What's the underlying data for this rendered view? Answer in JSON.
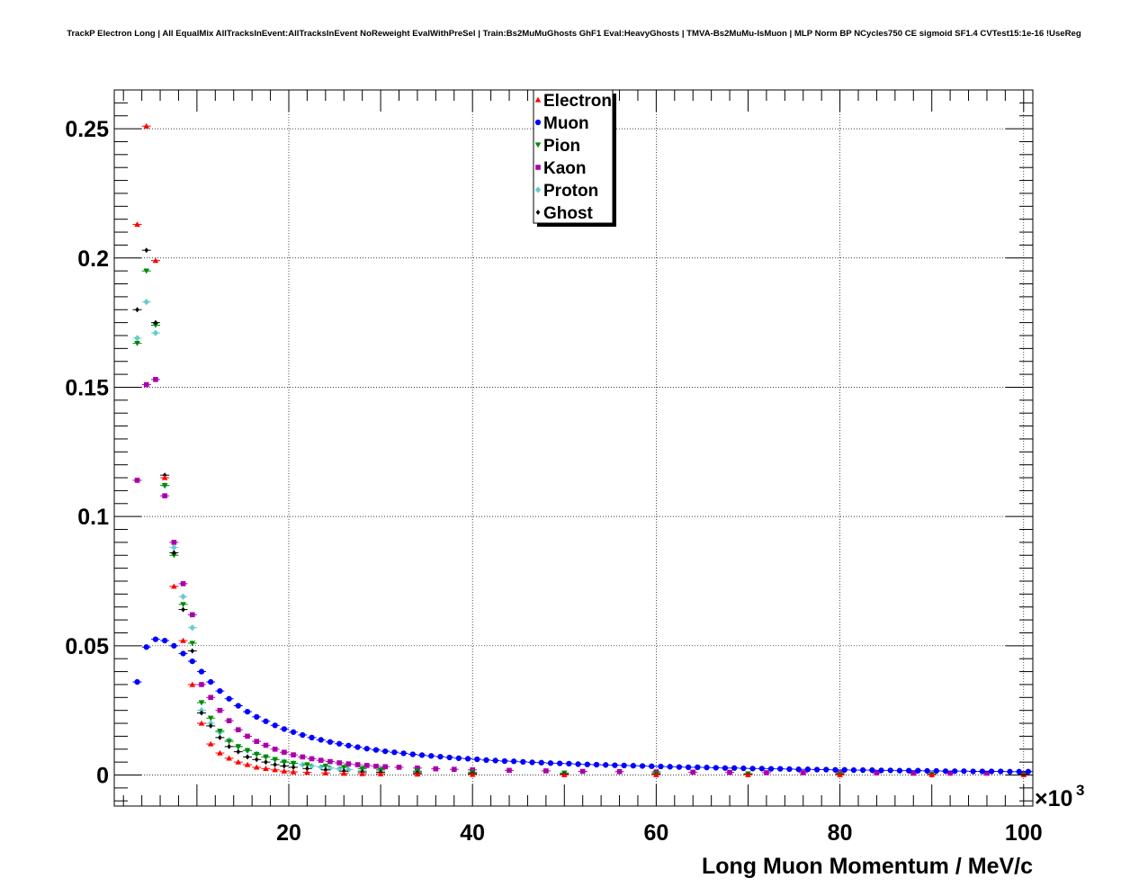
{
  "title": "TrackP Electron Long | All EqualMix AllTracksInEvent:AllTracksInEvent NoReweight EvalWithPreSel | Train:Bs2MuMuGhosts GhF1 Eval:HeavyGhosts | TMVA-Bs2MuMu-IsMuon | MLP Norm BP NCycles750 CE sigmoid SF1.4 CVTest15:1e-16 !UseReg",
  "chart_data": {
    "type": "scatter",
    "title": "TrackP Electron Long | All EqualMix AllTracksInEvent:AllTracksInEvent NoReweight EvalWithPreSel | Train:Bs2MuMuGhosts GhF1 Eval:HeavyGhosts | TMVA-Bs2MuMu-IsMuon | MLP Norm BP NCycles750 CE sigmoid SF1.4 CVTest15:1e-16 !UseReg",
    "xlabel": "Long Muon Momentum / MeV/c",
    "ylabel": "",
    "x_exponent_label": "×10",
    "x_exponent_power": "3",
    "xlim": [
      1,
      101
    ],
    "ylim": [
      -0.012,
      0.265
    ],
    "x_ticks": [
      20,
      40,
      60,
      80,
      100
    ],
    "x_tick_labels": [
      "20",
      "40",
      "60",
      "80",
      "100"
    ],
    "y_ticks": [
      0,
      0.05,
      0.1,
      0.15,
      0.2,
      0.25
    ],
    "y_tick_labels": [
      "0",
      "0.05",
      "0.1",
      "0.15",
      "0.2",
      "0.25"
    ],
    "grid": true,
    "legend_position": "top-center",
    "series": [
      {
        "name": "Electron",
        "marker": "triangle-up",
        "color": "#ff0000",
        "x": [
          3.5,
          4.5,
          5.5,
          6.5,
          7.5,
          8.5,
          9.5,
          10.5,
          11.5,
          12.5,
          13.5,
          14.5,
          15.5,
          16.5,
          17.5,
          18.5,
          19.5,
          20.5,
          22,
          24,
          26,
          28,
          30,
          34,
          40,
          50,
          60,
          70,
          80,
          90,
          100
        ],
        "y": [
          0.213,
          0.251,
          0.199,
          0.115,
          0.073,
          0.052,
          0.035,
          0.02,
          0.012,
          0.0085,
          0.0065,
          0.005,
          0.004,
          0.003,
          0.0025,
          0.002,
          0.0015,
          0.0012,
          0.001,
          0.0008,
          0.0006,
          0.0005,
          0.0004,
          0.0003,
          0.0002,
          0.0001,
          0.0001,
          0.0001,
          0.0001,
          0.0001,
          0.0001
        ]
      },
      {
        "name": "Muon",
        "marker": "circle",
        "color": "#0000ff",
        "x": [
          3.5,
          4.5,
          5.5,
          6.5,
          7.5,
          8.5,
          9.5,
          10.5,
          11.5,
          12.5,
          13.5,
          14.5,
          15.5,
          16.5,
          17.5,
          18.5,
          19.5,
          20.5,
          21.5,
          22.5,
          23.5,
          24.5,
          25.5,
          26.5,
          27.5,
          28.5,
          29.5,
          30.5,
          31.5,
          32.5,
          33.5,
          34.5,
          35.5,
          36.5,
          37.5,
          38.5,
          39.5,
          40.5,
          41.5,
          42.5,
          43.5,
          44.5,
          45.5,
          46.5,
          47.5,
          48.5,
          49.5,
          50.5,
          51.5,
          52.5,
          53.5,
          54.5,
          55.5,
          56.5,
          57.5,
          58.5,
          59.5,
          60.5,
          61.5,
          62.5,
          63.5,
          64.5,
          65.5,
          66.5,
          67.5,
          68.5,
          69.5,
          70.5,
          71.5,
          72.5,
          73.5,
          74.5,
          75.5,
          76.5,
          77.5,
          78.5,
          79.5,
          80.5,
          81.5,
          82.5,
          83.5,
          84.5,
          85.5,
          86.5,
          87.5,
          88.5,
          89.5,
          90.5,
          91.5,
          92.5,
          93.5,
          94.5,
          95.5,
          96.5,
          97.5,
          98.5,
          99.5,
          100.5
        ],
        "y": [
          0.036,
          0.0495,
          0.0525,
          0.052,
          0.05,
          0.047,
          0.044,
          0.04,
          0.036,
          0.0325,
          0.0295,
          0.0268,
          0.0245,
          0.0225,
          0.0208,
          0.0192,
          0.0178,
          0.0166,
          0.0155,
          0.0145,
          0.0136,
          0.0128,
          0.0121,
          0.0114,
          0.0108,
          0.0102,
          0.0097,
          0.0092,
          0.0088,
          0.0084,
          0.008,
          0.0077,
          0.0074,
          0.0071,
          0.0068,
          0.0065,
          0.0063,
          0.0061,
          0.0058,
          0.0056,
          0.0054,
          0.0053,
          0.0051,
          0.0049,
          0.0048,
          0.0046,
          0.0045,
          0.0044,
          0.0042,
          0.0041,
          0.004,
          0.0039,
          0.0038,
          0.0037,
          0.0036,
          0.0035,
          0.0034,
          0.0033,
          0.0032,
          0.0031,
          0.003,
          0.003,
          0.0029,
          0.0028,
          0.0027,
          0.0027,
          0.0026,
          0.0025,
          0.0025,
          0.0024,
          0.0024,
          0.0023,
          0.0022,
          0.0022,
          0.0021,
          0.0021,
          0.002,
          0.002,
          0.0019,
          0.0019,
          0.0019,
          0.0018,
          0.0018,
          0.0017,
          0.0017,
          0.0017,
          0.0016,
          0.0016,
          0.0015,
          0.0015,
          0.0015,
          0.0014,
          0.0014,
          0.0014,
          0.0014,
          0.0013,
          0.0013,
          0.0013
        ]
      },
      {
        "name": "Pion",
        "marker": "triangle-down",
        "color": "#008800",
        "x": [
          3.5,
          4.5,
          5.5,
          6.5,
          7.5,
          8.5,
          9.5,
          10.5,
          11.5,
          12.5,
          13.5,
          14.5,
          15.5,
          16.5,
          17.5,
          18.5,
          19.5,
          20.5,
          22,
          24,
          26,
          28,
          30,
          34,
          40,
          50,
          60,
          70,
          80,
          90,
          100
        ],
        "y": [
          0.167,
          0.195,
          0.174,
          0.112,
          0.085,
          0.066,
          0.051,
          0.028,
          0.022,
          0.017,
          0.013,
          0.011,
          0.0095,
          0.008,
          0.007,
          0.006,
          0.005,
          0.0045,
          0.004,
          0.0035,
          0.003,
          0.0025,
          0.002,
          0.0015,
          0.001,
          0.0008,
          0.0006,
          0.0005,
          0.0004,
          0.0003,
          0.0003
        ]
      },
      {
        "name": "Kaon",
        "marker": "square",
        "color": "#aa00aa",
        "x": [
          3.5,
          4.5,
          5.5,
          6.5,
          7.5,
          8.5,
          9.5,
          10.5,
          11.5,
          12.5,
          13.5,
          14.5,
          15.5,
          16.5,
          17.5,
          18.5,
          19.5,
          20.5,
          21.5,
          22.5,
          23.5,
          24.5,
          25.5,
          26.5,
          27.5,
          28.5,
          29.5,
          30.5,
          32,
          34,
          36,
          38,
          40,
          44,
          48,
          52,
          56,
          60,
          64,
          68,
          72,
          76,
          80,
          84,
          88,
          92,
          96,
          100
        ],
        "y": [
          0.114,
          0.151,
          0.153,
          0.108,
          0.09,
          0.074,
          0.062,
          0.035,
          0.03,
          0.025,
          0.021,
          0.0175,
          0.015,
          0.013,
          0.0115,
          0.01,
          0.0088,
          0.0078,
          0.007,
          0.0063,
          0.0057,
          0.0052,
          0.0047,
          0.0043,
          0.004,
          0.0037,
          0.0034,
          0.0032,
          0.003,
          0.0027,
          0.0024,
          0.0022,
          0.002,
          0.0018,
          0.0016,
          0.0014,
          0.0013,
          0.0012,
          0.0011,
          0.001,
          0.0009,
          0.0009,
          0.0008,
          0.0008,
          0.0007,
          0.0007,
          0.0007,
          0.0006
        ]
      },
      {
        "name": "Proton",
        "marker": "diamond",
        "color": "#66cccc",
        "x": [
          3.5,
          4.5,
          5.5,
          6.5,
          7.5,
          8.5,
          9.5,
          10.5,
          11.5,
          12.5,
          13.5,
          14.5,
          15.5,
          16.5,
          17.5,
          18.5,
          19.5,
          20.5,
          21.5,
          22.5,
          23.5,
          24.5,
          25.5,
          26.5,
          28,
          30,
          34,
          40,
          50,
          60,
          70,
          80,
          90,
          100
        ],
        "y": [
          0.169,
          0.183,
          0.171,
          0.112,
          0.088,
          0.069,
          0.057,
          0.025,
          0.02,
          0.0165,
          0.0135,
          0.011,
          0.0095,
          0.0082,
          0.007,
          0.006,
          0.0052,
          0.0046,
          0.004,
          0.0035,
          0.0031,
          0.0027,
          0.0024,
          0.0021,
          0.0018,
          0.0015,
          0.0012,
          0.0009,
          0.0006,
          0.0004,
          0.0003,
          0.0003,
          0.0002,
          0.0002
        ]
      },
      {
        "name": "Ghost",
        "marker": "diamond-small",
        "color": "#000000",
        "x": [
          3.5,
          4.5,
          5.5,
          6.5,
          7.5,
          8.5,
          9.5,
          10.5,
          11.5,
          12.5,
          13.5,
          14.5,
          15.5,
          16.5,
          17.5,
          18.5,
          19.5,
          20.5,
          22,
          24,
          26,
          28,
          30,
          34,
          40,
          50,
          60,
          70,
          80,
          90,
          100
        ],
        "y": [
          0.18,
          0.203,
          0.175,
          0.116,
          0.086,
          0.064,
          0.048,
          0.024,
          0.019,
          0.0145,
          0.011,
          0.009,
          0.007,
          0.006,
          0.005,
          0.004,
          0.0035,
          0.003,
          0.0025,
          0.002,
          0.0015,
          0.0012,
          0.001,
          0.0008,
          0.0005,
          0.0003,
          0.0002,
          0.0002,
          0.0001,
          0.0001,
          0.0001
        ]
      }
    ]
  }
}
